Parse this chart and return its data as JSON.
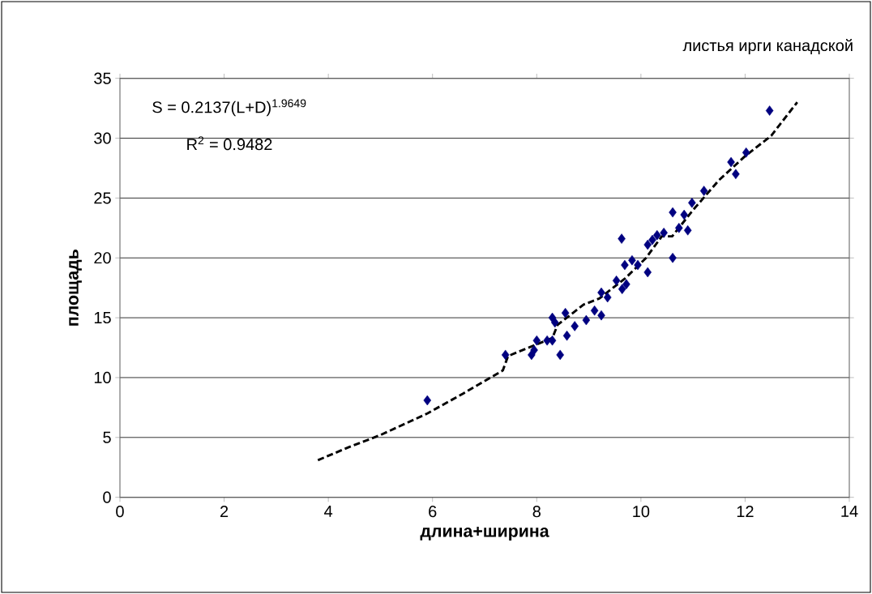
{
  "chart_data": {
    "type": "scatter",
    "xlabel": "длина+ширина",
    "ylabel": "площадь",
    "annotations": [
      "листья ирги канадской",
      "S = 0.2137(L+D)$^{1.9649}$",
      "R$^{2}$ = 0.9482"
    ],
    "xlim": [
      0,
      14
    ],
    "xticks": [
      0,
      2,
      4,
      6,
      8,
      10,
      12,
      14
    ],
    "ylim": [
      0,
      35
    ],
    "yticks": [
      0,
      5,
      10,
      15,
      20,
      25,
      30,
      35
    ],
    "grid": "y",
    "series": [
      {
        "type": "scatter",
        "color": "#000080",
        "marker": "diamond",
        "x": [
          5.9,
          7.4,
          7.9,
          7.95,
          8.0,
          8.2,
          8.3,
          8.3,
          8.35,
          8.45,
          8.55,
          8.58,
          8.73,
          8.95,
          9.11,
          9.24,
          9.24,
          9.36,
          9.53,
          9.64,
          9.72,
          9.63,
          9.69,
          9.83,
          9.94,
          10.13,
          10.13,
          10.22,
          10.31,
          10.44,
          10.61,
          10.61,
          10.73,
          10.83,
          10.9,
          10.98,
          11.21,
          11.73,
          11.82,
          12.02,
          12.47
        ],
        "values": [
          8.1,
          11.9,
          11.9,
          12.3,
          13.1,
          13.1,
          13.1,
          15.0,
          14.6,
          11.9,
          15.4,
          13.5,
          14.3,
          14.8,
          15.6,
          15.2,
          17.1,
          16.7,
          18.1,
          17.4,
          17.8,
          21.6,
          19.4,
          19.8,
          19.4,
          18.8,
          21.1,
          21.5,
          21.9,
          22.1,
          20.0,
          23.8,
          22.5,
          23.6,
          22.3,
          24.6,
          25.6,
          28.0,
          27.0,
          28.8,
          32.3
        ]
      },
      {
        "type": "line",
        "color": "#000000",
        "marker": "none",
        "line_style": "dashed",
        "x": [
          3.8,
          4.4,
          5.0,
          5.9,
          6.6,
          7.35,
          7.45,
          8.3,
          8.4,
          8.9,
          9.2,
          9.7,
          10.1,
          10.4,
          10.6,
          11.0,
          11.5,
          12.0,
          12.5,
          13.0
        ],
        "values": [
          3.1,
          4.2,
          5.2,
          7.0,
          8.7,
          10.6,
          11.8,
          13.3,
          14.4,
          16.1,
          16.6,
          18.3,
          20.0,
          21.8,
          21.8,
          24.0,
          26.5,
          28.5,
          30.2,
          33.0
        ]
      }
    ]
  }
}
